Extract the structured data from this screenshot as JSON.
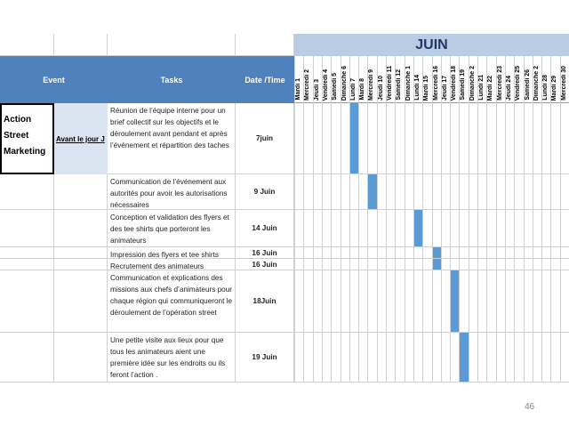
{
  "month": "JUIN",
  "headers": {
    "event": "Event",
    "tasks": "Tasks",
    "date": "Date /Time"
  },
  "event_name": "Action Street Marketing",
  "phase_label": "Avant le jour J",
  "days": [
    "Mardi 1",
    "Mercredi 2",
    "Jeudi 3",
    "Vendredi 4",
    "Samedi 5",
    "Dimanche 6",
    "Lundi 7",
    "Mardi 8",
    "Mercredi 9",
    "Jeudi 10",
    "Vendredi 11",
    "Samedi 12",
    "Dimanche 1",
    "Lundi 14",
    "Mardi 15",
    "Mercredi 16",
    "Jeudi 17",
    "Vendredi 18",
    "Samedi 19",
    "Dimanche 2",
    "Lundi 21",
    "Mardi 22",
    "Mercredi 23",
    "Jeudi 24",
    "Vendredi 25",
    "Samedi 26",
    "Dimanche 2",
    "Lundi 28",
    "Mardi 29",
    "Mercredi 30"
  ],
  "tasks": [
    {
      "text": "Réunion de l’équipe interne pour un brief collectif sur les objectifs et le déroulement avant pendant et après l’événement et répartition des taches",
      "date": "7juin",
      "day": 7
    },
    {
      "text": "Communication de l’événement aux autorités pour avoir les autorisations nécessaires",
      "date": "9 Juin",
      "day": 9
    },
    {
      "text": "Conception et validation des flyers et des tee shirts que porteront les animateurs",
      "date": "14 Juin",
      "day": 14
    },
    {
      "text": "Impression des flyers et tee shirts",
      "date": "16 Juin",
      "day": 16
    },
    {
      "text": "Recrutement des animateurs",
      "date": "16 Juin",
      "day": 16
    },
    {
      "text": "Communication et explications des missions aux chefs d’animateurs pour chaque région qui communiqueront le déroulement de l’opération street",
      "date": "18Juin",
      "day": 18
    },
    {
      "text": "Une petite visite aux lieux pour que tous les animateurs aient une première idée sur les endroits ou ils feront l’action .",
      "date": "19 Juin",
      "day": 19
    }
  ],
  "page_number": "46"
}
